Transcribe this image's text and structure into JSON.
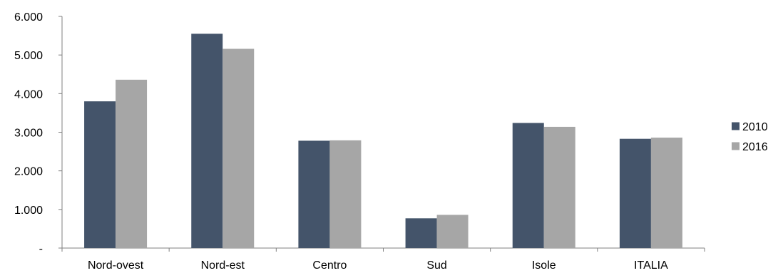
{
  "chart_data": {
    "type": "bar",
    "categories": [
      "Nord-ovest",
      "Nord-est",
      "Centro",
      "Sud",
      "Isole",
      "ITALIA"
    ],
    "series": [
      {
        "name": "2010",
        "color": "#44546a",
        "values": [
          3800,
          5550,
          2780,
          770,
          3240,
          2830
        ]
      },
      {
        "name": "2016",
        "color": "#a6a6a6",
        "values": [
          4360,
          5160,
          2790,
          860,
          3140,
          2860
        ]
      }
    ],
    "yticks": [
      "-",
      "1.000",
      "2.000",
      "3.000",
      "4.000",
      "5.000",
      "6.000"
    ],
    "ylim": [
      0,
      6000
    ],
    "grid": false,
    "legend_position": "right"
  }
}
